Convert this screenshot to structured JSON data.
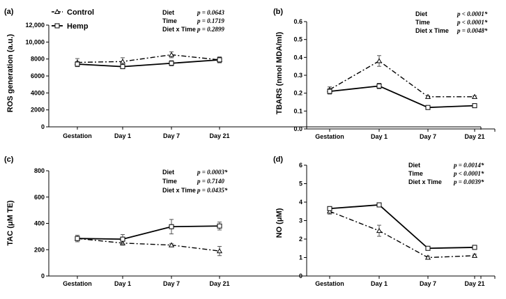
{
  "chart_data": [
    {
      "type": "line",
      "panel_label": "(a)",
      "ylabel": "ROS generation (a.u.)",
      "ylim": [
        0,
        12000
      ],
      "yticks": [
        0,
        2000,
        4000,
        6000,
        8000,
        10000,
        12000
      ],
      "ytick_labels": [
        "0",
        "2000",
        "4000",
        "6000",
        "8000",
        "10,000",
        "12,000"
      ],
      "categories": [
        "Gestation",
        "Day 1",
        "Day 7",
        "Day 21"
      ],
      "series": [
        {
          "name": "Control",
          "marker": "triangle",
          "dash": "dashdot",
          "values": [
            7600,
            7700,
            8500,
            7900
          ],
          "errors": [
            450,
            450,
            350,
            300
          ]
        },
        {
          "name": "Hemp",
          "marker": "square",
          "dash": "solid",
          "values": [
            7400,
            7100,
            7500,
            7900
          ],
          "errors": [
            300,
            200,
            300,
            350
          ]
        }
      ],
      "stats": [
        {
          "name": "Diet",
          "value": "p = 0.0643"
        },
        {
          "name": "Time",
          "value": "p = 0.1719"
        },
        {
          "name": "Diet x Time",
          "value": "p = 0.2899"
        }
      ],
      "legend": "top-left"
    },
    {
      "type": "line",
      "panel_label": "(b)",
      "ylabel": "TBARS (nmol MDA/ml)",
      "ylim": [
        0,
        0.6
      ],
      "yticks": [
        0,
        0.1,
        0.2,
        0.3,
        0.4,
        0.5,
        0.6
      ],
      "ytick_labels": [
        "0.0",
        "0.1",
        "0.2",
        "0.3",
        "0.4",
        "0.5",
        "0.6"
      ],
      "categories": [
        "Gestation",
        "Day 1",
        "Day 7",
        "Day 21"
      ],
      "series": [
        {
          "name": "Control",
          "marker": "triangle",
          "dash": "dashdot",
          "values": [
            0.22,
            0.38,
            0.18,
            0.18
          ],
          "errors": [
            0.015,
            0.03,
            0.005,
            0.005
          ]
        },
        {
          "name": "Hemp",
          "marker": "square",
          "dash": "solid",
          "values": [
            0.21,
            0.24,
            0.12,
            0.13
          ],
          "errors": [
            0.015,
            0.015,
            0.005,
            0.005
          ]
        }
      ],
      "stats": [
        {
          "name": "Diet",
          "value": "p < 0.0001*"
        },
        {
          "name": "Time",
          "value": "p < 0.0001*"
        },
        {
          "name": "Diet x Time",
          "value": "p = 0.0048*"
        }
      ]
    },
    {
      "type": "line",
      "panel_label": "(c)",
      "ylabel": "TAC (μM TE)",
      "ylim": [
        0,
        800
      ],
      "yticks": [
        0,
        200,
        400,
        600,
        800
      ],
      "ytick_labels": [
        "0",
        "200",
        "400",
        "600",
        "800"
      ],
      "categories": [
        "Gestation",
        "Day 1",
        "Day 7",
        "Day 21"
      ],
      "series": [
        {
          "name": "Control",
          "marker": "triangle",
          "dash": "dashdot",
          "values": [
            285,
            250,
            235,
            190
          ],
          "errors": [
            15,
            15,
            10,
            35
          ]
        },
        {
          "name": "Hemp",
          "marker": "square",
          "dash": "solid",
          "values": [
            285,
            280,
            375,
            380
          ],
          "errors": [
            25,
            35,
            55,
            30
          ]
        }
      ],
      "stats": [
        {
          "name": "Diet",
          "value": "p = 0.0003*"
        },
        {
          "name": "Time",
          "value": "p = 0.7140"
        },
        {
          "name": "Diet x Time",
          "value": "p = 0.0435*"
        }
      ]
    },
    {
      "type": "line",
      "panel_label": "(d)",
      "ylabel": "NO (μM)",
      "ylim": [
        0,
        6
      ],
      "yticks": [
        0,
        1,
        2,
        3,
        4,
        5,
        6
      ],
      "ytick_labels": [
        "0",
        "1",
        "2",
        "3",
        "4",
        "5",
        "6"
      ],
      "categories": [
        "Gestation",
        "Day 1",
        "Day 7",
        "Day 21"
      ],
      "series": [
        {
          "name": "Control",
          "marker": "triangle",
          "dash": "dashdot",
          "values": [
            3.5,
            2.45,
            1.0,
            1.1
          ],
          "errors": [
            0.15,
            0.3,
            0.08,
            0.08
          ]
        },
        {
          "name": "Hemp",
          "marker": "square",
          "dash": "solid",
          "values": [
            3.65,
            3.85,
            1.5,
            1.55
          ],
          "errors": [
            0.1,
            0.08,
            0.08,
            0.1
          ]
        }
      ],
      "stats": [
        {
          "name": "Diet",
          "value": "p = 0.0014*"
        },
        {
          "name": "Time",
          "value": "p < 0.0001*"
        },
        {
          "name": "Diet x Time",
          "value": "p = 0.0039*"
        }
      ]
    }
  ]
}
